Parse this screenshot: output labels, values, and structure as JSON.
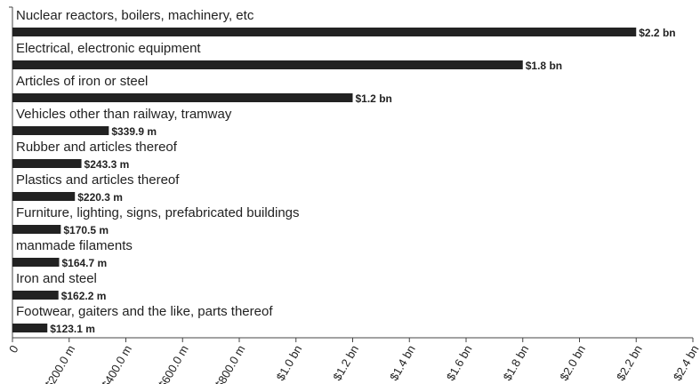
{
  "chart_data": {
    "type": "bar",
    "orientation": "horizontal",
    "categories": [
      "Nuclear reactors, boilers, machinery, etc",
      "Electrical, electronic equipment",
      "Articles of iron or steel",
      "Vehicles other than railway, tramway",
      "Rubber and articles thereof",
      "Plastics and articles thereof",
      "Furniture, lighting, signs, prefabricated buildings",
      "manmade filaments",
      "Iron and steel",
      "Footwear, gaiters and the like, parts thereof"
    ],
    "values": [
      2200,
      1800,
      1200,
      339.9,
      243.3,
      220.3,
      170.5,
      164.7,
      162.2,
      123.1
    ],
    "value_labels": [
      "$2.2 bn",
      "$1.8 bn",
      "$1.2 bn",
      "$339.9 m",
      "$243.3 m",
      "$220.3 m",
      "$170.5 m",
      "$164.7 m",
      "$162.2 m",
      "$123.1 m"
    ],
    "color": "#222222",
    "xlim": [
      0,
      2400
    ],
    "xticks": [
      0,
      {
        "value": 200,
        "label": "$200.0 m"
      },
      {
        "value": 400,
        "label": "$400.0 m"
      },
      {
        "value": 600,
        "label": "$600.0 m"
      },
      {
        "value": 800,
        "label": "$800.0 m"
      },
      {
        "value": 1000,
        "label": "$1.0 bn"
      },
      {
        "value": 1200,
        "label": "$1.2 bn"
      },
      {
        "value": 1400,
        "label": "$1.4 bn"
      },
      {
        "value": 1600,
        "label": "$1.6 bn"
      },
      {
        "value": 1800,
        "label": "$1.8 bn"
      },
      {
        "value": 2000,
        "label": "$2.0 bn"
      },
      {
        "value": 2200,
        "label": "$2.2 bn"
      },
      {
        "value": 2400,
        "label": "$2.4 bn"
      }
    ]
  }
}
